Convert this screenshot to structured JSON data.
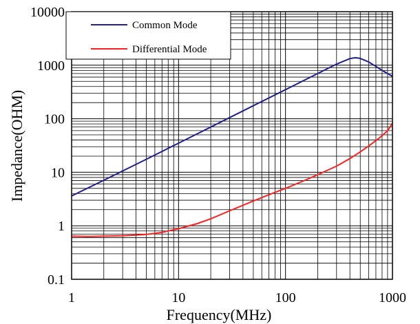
{
  "chart_data": {
    "type": "line",
    "title": "",
    "xlabel": "Frequency(MHz)",
    "ylabel": "Impedance(OHM)",
    "x_scale": "log",
    "y_scale": "log",
    "xlim": [
      1,
      1000
    ],
    "ylim": [
      0.1,
      10000
    ],
    "x_ticks": [
      "1",
      "10",
      "100",
      "1000"
    ],
    "y_ticks": [
      "0.1",
      "1",
      "10",
      "100",
      "1000",
      "10000"
    ],
    "grid": true,
    "legend": "top-left",
    "series": [
      {
        "name": "Common Mode",
        "color": "#1f1f8f",
        "x": [
          1,
          2,
          5,
          10,
          20,
          50,
          100,
          200,
          300,
          400,
          450,
          500,
          600,
          700,
          800,
          1000
        ],
        "y": [
          3.6,
          7.1,
          17.5,
          35,
          70,
          175,
          350,
          700,
          1050,
          1330,
          1380,
          1340,
          1150,
          950,
          800,
          620
        ]
      },
      {
        "name": "Differential Mode",
        "color": "#ff1f1f",
        "x": [
          1,
          1.5,
          2,
          3,
          4,
          5,
          6,
          7,
          8,
          10,
          15,
          20,
          30,
          50,
          70,
          100,
          150,
          200,
          300,
          400,
          500,
          600,
          700,
          800,
          900,
          1000
        ],
        "y": [
          0.64,
          0.63,
          0.64,
          0.65,
          0.67,
          0.69,
          0.72,
          0.75,
          0.8,
          0.88,
          1.1,
          1.35,
          1.9,
          2.9,
          3.8,
          5,
          7,
          9,
          13,
          18,
          24,
          31,
          39,
          48,
          60,
          82
        ]
      }
    ]
  }
}
